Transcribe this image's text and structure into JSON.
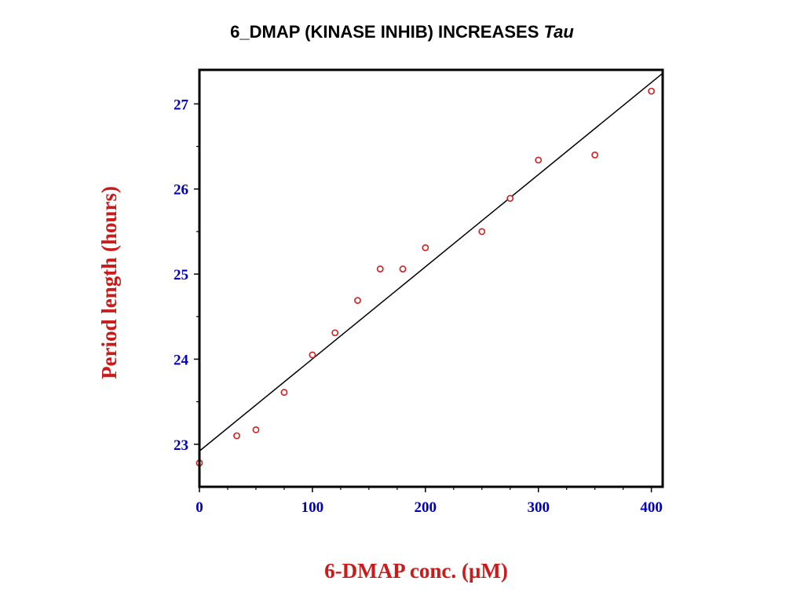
{
  "title": {
    "main": "6_DMAP (KINASE INHIB) INCREASES",
    "italic": "Tau"
  },
  "chart_data": {
    "type": "scatter",
    "xlabel": "6-DMAP conc. (µM)",
    "ylabel": "Period length (hours)",
    "xlim": [
      0,
      410
    ],
    "ylim": [
      22.5,
      27.4
    ],
    "xticks": [
      0,
      100,
      200,
      300,
      400
    ],
    "xtick_labels": [
      "0",
      "100",
      "200",
      "300",
      "400"
    ],
    "xminor": [
      25,
      50,
      75,
      125,
      150,
      175,
      225,
      250,
      275,
      325,
      350,
      375
    ],
    "yticks": [
      23,
      24,
      25,
      26,
      27
    ],
    "ytick_labels": [
      "23",
      "24",
      "25",
      "26",
      "27"
    ],
    "yminor": [
      23.5,
      24.5,
      25.5,
      26.5
    ],
    "grid": false,
    "points": [
      {
        "x": 0,
        "y": 22.78
      },
      {
        "x": 33,
        "y": 23.1
      },
      {
        "x": 50,
        "y": 23.17
      },
      {
        "x": 75,
        "y": 23.61
      },
      {
        "x": 100,
        "y": 24.05
      },
      {
        "x": 120,
        "y": 24.31
      },
      {
        "x": 140,
        "y": 24.69
      },
      {
        "x": 160,
        "y": 25.06
      },
      {
        "x": 180,
        "y": 25.06
      },
      {
        "x": 200,
        "y": 25.31
      },
      {
        "x": 250,
        "y": 25.5
      },
      {
        "x": 275,
        "y": 25.89
      },
      {
        "x": 300,
        "y": 26.34
      },
      {
        "x": 350,
        "y": 26.4
      },
      {
        "x": 400,
        "y": 27.15
      }
    ],
    "fit_line": {
      "x": [
        0,
        410
      ],
      "y": [
        22.92,
        27.36
      ]
    },
    "colors": {
      "points": "#d02020",
      "line": "#000000",
      "tick_labels": "#0000c0",
      "axis_titles": "#cc1a1a"
    }
  }
}
